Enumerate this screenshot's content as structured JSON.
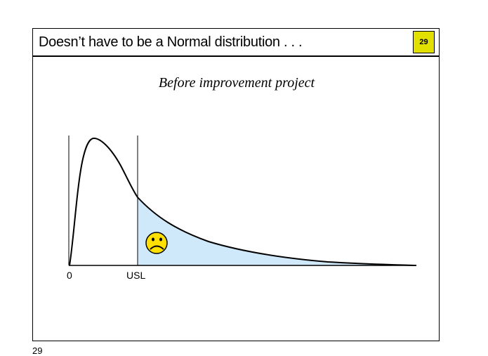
{
  "slide": {
    "title": "Doesn’t have to be a Normal distribution . . .",
    "badge_number": "29",
    "badge_color": "#e2e000"
  },
  "diagram": {
    "subtitle": "Before improvement project",
    "x_labels": {
      "zero": "0",
      "usl": "USL"
    },
    "shaded_region_color": "#cfe9fb",
    "face_icon": "sad-face-icon",
    "face_color": "#ffe000"
  },
  "footer": {
    "page_number": "29"
  }
}
